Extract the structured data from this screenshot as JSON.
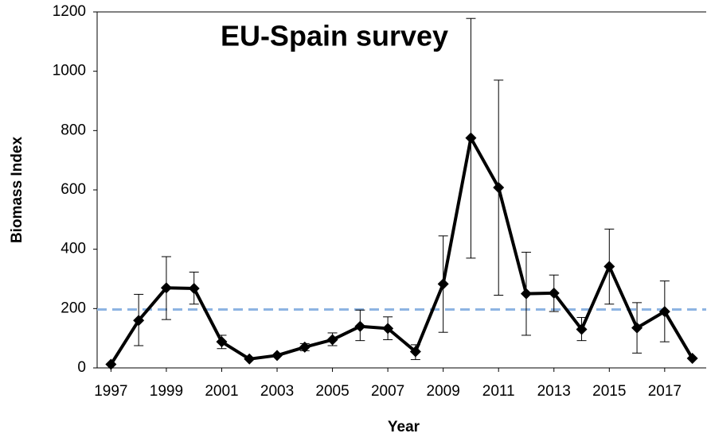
{
  "chart_data": {
    "type": "line",
    "title": "EU-Spain survey",
    "x_label": "Year",
    "y_label": "Biomass Index",
    "x": [
      1997,
      1998,
      1999,
      2000,
      2001,
      2002,
      2003,
      2004,
      2005,
      2006,
      2007,
      2008,
      2009,
      2010,
      2011,
      2012,
      2013,
      2014,
      2015,
      2016,
      2017,
      2018
    ],
    "series": [
      {
        "name": "Biomass Index",
        "color": "#000000",
        "values": [
          12,
          160,
          270,
          268,
          88,
          30,
          42,
          70,
          95,
          140,
          133,
          55,
          283,
          775,
          608,
          250,
          252,
          130,
          342,
          135,
          190,
          32
        ],
        "lower": [
          null,
          75,
          163,
          215,
          65,
          null,
          null,
          58,
          75,
          92,
          95,
          28,
          120,
          370,
          245,
          110,
          190,
          92,
          215,
          50,
          88,
          null
        ],
        "upper": [
          null,
          248,
          375,
          323,
          110,
          null,
          null,
          82,
          118,
          195,
          172,
          78,
          445,
          1178,
          970,
          390,
          313,
          170,
          468,
          220,
          293,
          null
        ]
      }
    ],
    "reference_line": {
      "value": 197,
      "color": "#8db4e2"
    },
    "xlim": [
      1996.5,
      2018.5
    ],
    "xticks": [
      1997,
      1999,
      2001,
      2003,
      2005,
      2007,
      2009,
      2011,
      2013,
      2015,
      2017
    ],
    "ylim": [
      0,
      1200
    ],
    "yticks": [
      0,
      200,
      400,
      600,
      800,
      1000,
      1200
    ],
    "grid": false
  }
}
